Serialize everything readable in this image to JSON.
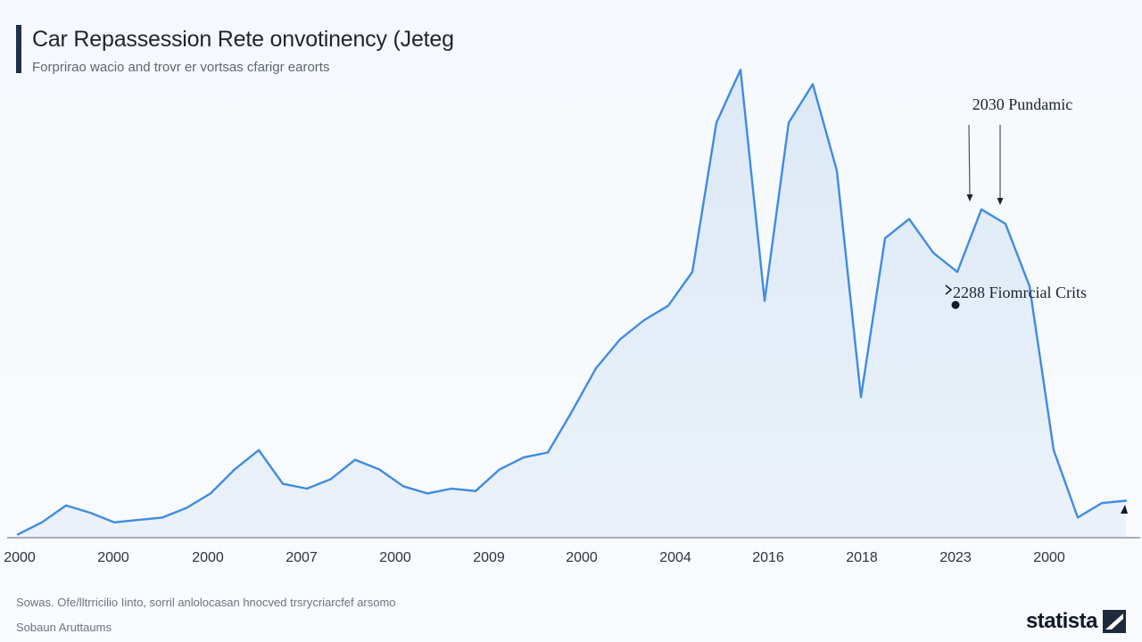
{
  "header": {
    "title": "Car Repassession Rete onvotinency (Jeteg",
    "subtitle": "Forprirao wacio and trovr er vortsas cfarigr earorts"
  },
  "footer": {
    "source": "Sowas. Ofe/lltrricilio Iinto, sorril anlolocasan hnocved trsrycriarcfef arsomo",
    "note": "Sobaun Aruttaums",
    "brand": "statista"
  },
  "colors": {
    "line": "#3f8be3",
    "area": "#e3edf8",
    "axis": "#8a93a0",
    "title_bar": "#1f2f4e"
  },
  "chart_data": {
    "type": "area",
    "title": "Car Repassession Rete onvotinency (Jeteg",
    "subtitle": "Forprirao wacio and trovr er vortsas cfarigr earorts",
    "xlabel": "",
    "ylabel": "",
    "grid": false,
    "x_tick_labels": [
      "2000",
      "2000",
      "2000",
      "2007",
      "2000",
      "2009",
      "2000",
      "2004",
      "2016",
      "2018",
      "2023",
      "2000"
    ],
    "ylim": [
      0,
      100
    ],
    "series": [
      {
        "values": [
          0.5,
          3,
          6.5,
          5,
          3,
          3.5,
          4,
          6,
          9,
          14,
          18,
          11,
          10,
          12,
          16,
          14,
          10.5,
          9,
          10,
          9.5,
          14,
          16.5,
          17.5,
          26,
          35,
          41,
          45,
          48,
          55,
          86,
          97,
          49,
          86,
          94,
          76,
          29,
          62,
          66,
          59,
          55,
          68,
          65,
          52,
          18,
          4,
          7,
          7.5
        ]
      }
    ],
    "annotations": [
      {
        "text": "2030 Pundamic"
      },
      {
        "text": "2288 Fiomrcial Crits"
      }
    ]
  }
}
